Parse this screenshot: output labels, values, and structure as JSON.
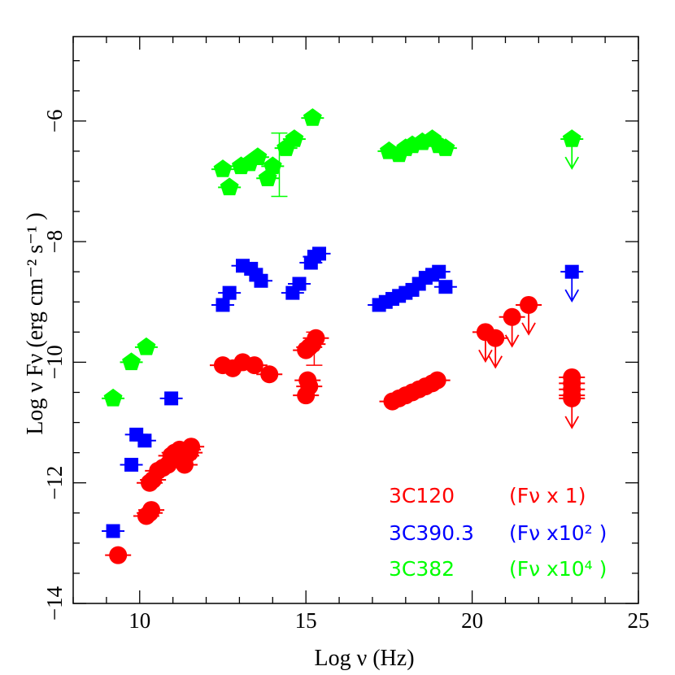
{
  "chart_data": {
    "type": "scatter",
    "xlabel": "Log ν (Hz)",
    "ylabel": "Log ν Fν (erg cm⁻² s⁻¹ )",
    "xlim": [
      8,
      25
    ],
    "ylim": [
      -14,
      -4.6
    ],
    "x_ticks": [
      10,
      15,
      20,
      25
    ],
    "y_ticks": [
      -6,
      -8,
      -10,
      -12,
      -14
    ],
    "x_tick_labels": [
      "10",
      "15",
      "20",
      "25"
    ],
    "y_tick_labels": [
      "−6",
      "−8",
      "−10",
      "−12",
      "−14"
    ],
    "legend_position": "bottom-right",
    "series": [
      {
        "name": "3C120",
        "legend_label": "3C120",
        "legend_scale": "(Fν x 1)",
        "color": "#ff0000",
        "marker": "circle",
        "points": [
          [
            9.35,
            -13.2
          ],
          [
            10.2,
            -12.55
          ],
          [
            10.3,
            -12.5
          ],
          [
            10.35,
            -12.45
          ],
          [
            10.3,
            -12.0
          ],
          [
            10.4,
            -11.95
          ],
          [
            10.55,
            -11.8
          ],
          [
            10.7,
            -11.75
          ],
          [
            10.85,
            -11.7
          ],
          [
            10.95,
            -11.55
          ],
          [
            11.05,
            -11.5
          ],
          [
            11.1,
            -11.55
          ],
          [
            11.2,
            -11.45
          ],
          [
            11.3,
            -11.6
          ],
          [
            11.35,
            -11.7
          ],
          [
            11.4,
            -11.55
          ],
          [
            11.45,
            -11.45
          ],
          [
            11.5,
            -11.5
          ],
          [
            11.55,
            -11.4
          ],
          [
            12.5,
            -10.05
          ],
          [
            12.8,
            -10.1
          ],
          [
            13.1,
            -10.0
          ],
          [
            13.45,
            -10.05
          ],
          [
            13.9,
            -10.2
          ],
          [
            15.0,
            -10.55
          ],
          [
            15.05,
            -10.3
          ],
          [
            15.1,
            -10.4
          ],
          [
            15.0,
            -9.8
          ],
          [
            15.1,
            -9.75
          ],
          [
            15.2,
            -9.7
          ],
          [
            15.3,
            -9.6
          ],
          [
            17.6,
            -10.65
          ],
          [
            17.8,
            -10.6
          ],
          [
            18.0,
            -10.55
          ],
          [
            18.2,
            -10.5
          ],
          [
            18.4,
            -10.45
          ],
          [
            18.6,
            -10.4
          ],
          [
            18.8,
            -10.35
          ],
          [
            18.95,
            -10.3
          ],
          [
            23.0,
            -10.25
          ],
          [
            23.0,
            -10.35
          ],
          [
            23.0,
            -10.45
          ],
          [
            23.0,
            -10.55
          ]
        ],
        "upper_limits": [
          [
            20.4,
            -9.5
          ],
          [
            20.7,
            -9.6
          ],
          [
            21.2,
            -9.25
          ],
          [
            21.7,
            -9.05
          ],
          [
            23.0,
            -10.6
          ]
        ],
        "error_bars": [
          [
            15.25,
            -9.5,
            -10.05
          ]
        ]
      },
      {
        "name": "3C390.3",
        "legend_label": "3C390.3",
        "legend_scale": "(Fν x10² )",
        "color": "#0000ff",
        "marker": "square",
        "points": [
          [
            9.2,
            -12.8
          ],
          [
            9.75,
            -11.7
          ],
          [
            9.9,
            -11.2
          ],
          [
            10.15,
            -11.3
          ],
          [
            10.95,
            -10.6
          ],
          [
            12.5,
            -9.05
          ],
          [
            12.7,
            -8.85
          ],
          [
            13.1,
            -8.4
          ],
          [
            13.35,
            -8.45
          ],
          [
            13.5,
            -8.55
          ],
          [
            13.65,
            -8.65
          ],
          [
            14.6,
            -8.85
          ],
          [
            14.8,
            -8.7
          ],
          [
            15.15,
            -8.35
          ],
          [
            15.25,
            -8.25
          ],
          [
            15.4,
            -8.2
          ],
          [
            17.2,
            -9.05
          ],
          [
            17.4,
            -9.0
          ],
          [
            17.6,
            -8.95
          ],
          [
            17.8,
            -8.9
          ],
          [
            18.0,
            -8.85
          ],
          [
            18.2,
            -8.8
          ],
          [
            18.4,
            -8.7
          ],
          [
            18.6,
            -8.6
          ],
          [
            18.8,
            -8.55
          ],
          [
            19.0,
            -8.5
          ],
          [
            19.2,
            -8.75
          ]
        ],
        "upper_limits": [
          [
            23.0,
            -8.5
          ]
        ],
        "error_bars": []
      },
      {
        "name": "3C382",
        "legend_label": "3C382",
        "legend_scale": "(Fν x10⁴ )",
        "color": "#00ff00",
        "marker": "pentagon",
        "points": [
          [
            9.2,
            -10.6
          ],
          [
            9.75,
            -10.0
          ],
          [
            10.2,
            -9.75
          ],
          [
            12.5,
            -6.8
          ],
          [
            12.7,
            -7.1
          ],
          [
            13.05,
            -6.75
          ],
          [
            13.3,
            -6.7
          ],
          [
            13.55,
            -6.6
          ],
          [
            13.85,
            -6.95
          ],
          [
            14.0,
            -6.75
          ],
          [
            14.4,
            -6.45
          ],
          [
            14.65,
            -6.3
          ],
          [
            15.2,
            -5.95
          ],
          [
            17.5,
            -6.5
          ],
          [
            17.8,
            -6.55
          ],
          [
            18.0,
            -6.45
          ],
          [
            18.2,
            -6.4
          ],
          [
            18.5,
            -6.35
          ],
          [
            18.8,
            -6.3
          ],
          [
            19.0,
            -6.4
          ],
          [
            19.2,
            -6.45
          ]
        ],
        "upper_limits": [
          [
            23.0,
            -6.3
          ]
        ],
        "error_bars": [
          [
            14.2,
            -6.2,
            -7.25
          ]
        ]
      }
    ]
  }
}
